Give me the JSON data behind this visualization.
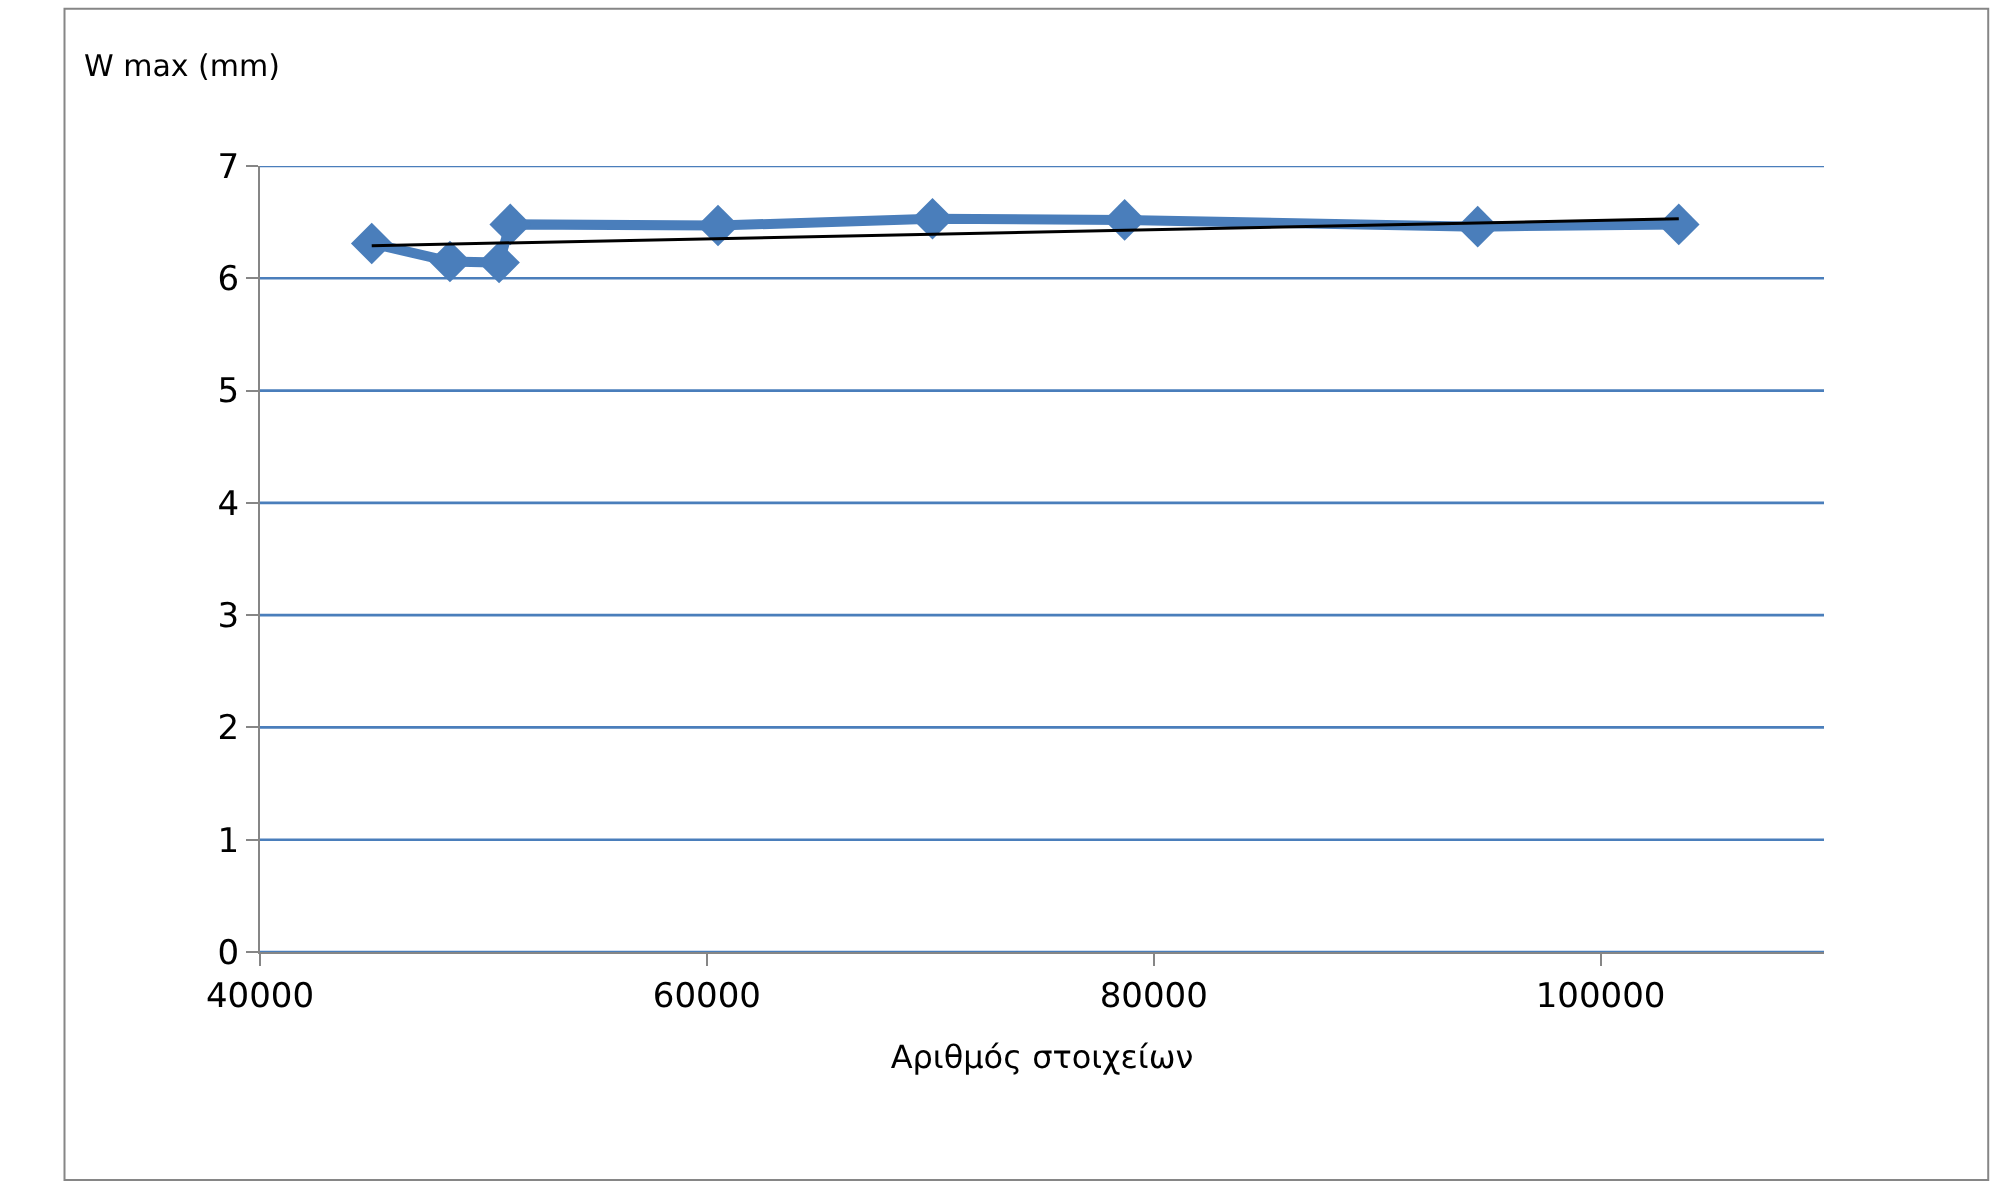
{
  "chart_data": {
    "type": "line",
    "ylabel": "W max (mm)",
    "xlabel": "Αριθμός στοιχείων",
    "xlim": [
      40000,
      110000
    ],
    "xticks": [
      40000,
      60000,
      80000,
      100000
    ],
    "ylim": [
      0,
      7
    ],
    "yticks": [
      0,
      1,
      2,
      3,
      4,
      5,
      6,
      7
    ],
    "grid": "y",
    "marker": "diamond",
    "line_style": "solid",
    "series": [
      {
        "color": "#4a7ebb",
        "x": [
          45000,
          48500,
          50700,
          51200,
          60500,
          70100,
          78700,
          94500,
          103500
        ],
        "values": [
          6.31,
          6.15,
          6.14,
          6.48,
          6.47,
          6.53,
          6.52,
          6.46,
          6.48
        ]
      },
      {
        "type": "line",
        "marker": "none",
        "color": "#000000",
        "x": [
          45000,
          103500
        ],
        "values": [
          6.29,
          6.53
        ]
      }
    ]
  }
}
